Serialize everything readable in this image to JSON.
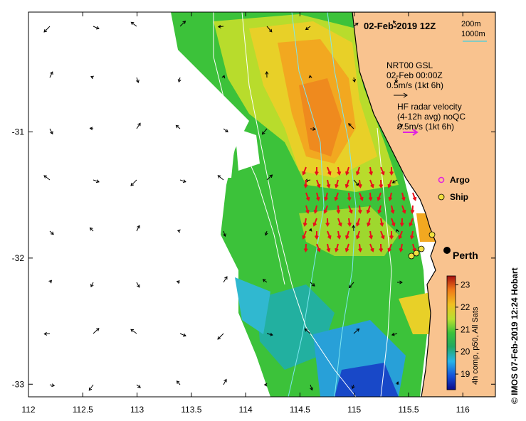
{
  "title": "02-Feb-2019 12Z",
  "credit": "© IMOS 07-Feb-2019 12:24 Hobart",
  "bathymetry_legend": {
    "contour_1": "200m",
    "contour_2": "1000m"
  },
  "model_legend": {
    "line1": "NRT00 GSL",
    "line2": "02-Feb 00:00Z",
    "line3": "0.5m/s (1kt 6h)"
  },
  "radar_legend": {
    "line1": "HF radar velocity",
    "line2": "(4-12h avg) noQC",
    "line3": "0.5m/s (1kt 6h)"
  },
  "markers": {
    "argo": "Argo",
    "ship": "Ship",
    "city": "Perth"
  },
  "colorbar": {
    "label": "4h comp, p50, All Sats",
    "ticks": [
      "19",
      "20",
      "21",
      "22",
      "23"
    ],
    "min": 18.3,
    "max": 23.4
  },
  "axes": {
    "x_ticks": [
      "112",
      "112.5",
      "113",
      "113.5",
      "114",
      "114.5",
      "115",
      "115.5",
      "116"
    ],
    "y_ticks": [
      "-31",
      "-32",
      "-33"
    ],
    "lon_range": [
      112,
      116.3
    ],
    "lat_range": [
      -33.1,
      -30.05
    ]
  },
  "colors": {
    "land": "#f9c38f",
    "coast": "#000000",
    "model_arrow": "#000000",
    "radar_arrow": "#e8101a",
    "argo": "#e020e0",
    "contour": "#7ee6f0"
  }
}
